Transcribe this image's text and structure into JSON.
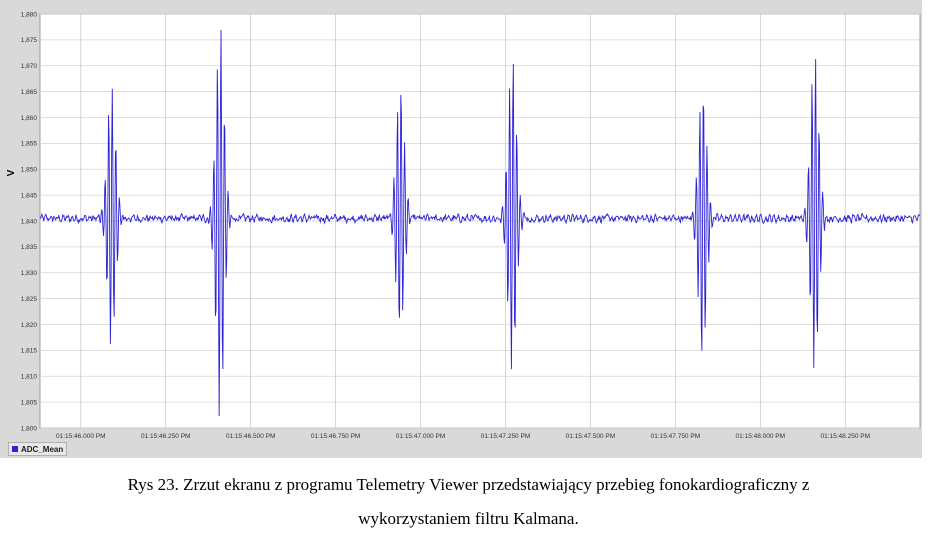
{
  "chart_data": {
    "type": "line",
    "ylabel": "V",
    "ylim": [
      1.8,
      1.88
    ],
    "yticks": [
      "1,800",
      "1,805",
      "1,810",
      "1,815",
      "1,820",
      "1,825",
      "1,830",
      "1,835",
      "1,840",
      "1,845",
      "1,850",
      "1,855",
      "1,860",
      "1,865",
      "1,870",
      "1,875",
      "1,880"
    ],
    "xticks": [
      "01:15:46.000 PM",
      "01:15:46.250 PM",
      "01:15:46.500 PM",
      "01:15:46.750 PM",
      "01:15:47.000 PM",
      "01:15:47.250 PM",
      "01:15:47.500 PM",
      "01:15:47.750 PM",
      "01:15:48.000 PM",
      "01:15:48.250 PM"
    ],
    "x_range_seconds": [
      45.88,
      48.47
    ],
    "baseline": 1.8405,
    "grid": true,
    "legend_position": "bottom-left",
    "series": [
      {
        "name": "ADC_Mean",
        "color": "#2d22d6",
        "bursts": [
          {
            "t": 46.09,
            "max": 1.8665,
            "min": 1.8155
          },
          {
            "t": 46.41,
            "max": 1.8775,
            "min": 1.802
          },
          {
            "t": 46.94,
            "max": 1.8665,
            "min": 1.819
          },
          {
            "t": 47.27,
            "max": 1.8725,
            "min": 1.8105
          },
          {
            "t": 47.83,
            "max": 1.8665,
            "min": 1.813
          },
          {
            "t": 48.16,
            "max": 1.8735,
            "min": 1.8105
          }
        ]
      }
    ]
  },
  "legend": {
    "label": "ADC_Mean"
  },
  "caption": {
    "line1": "Rys 23.  Zrzut ekranu z programu Telemetry Viewer przedstawiający przebieg fonokardiograficzny z",
    "line2": "wykorzystaniem filtru Kalmana."
  }
}
